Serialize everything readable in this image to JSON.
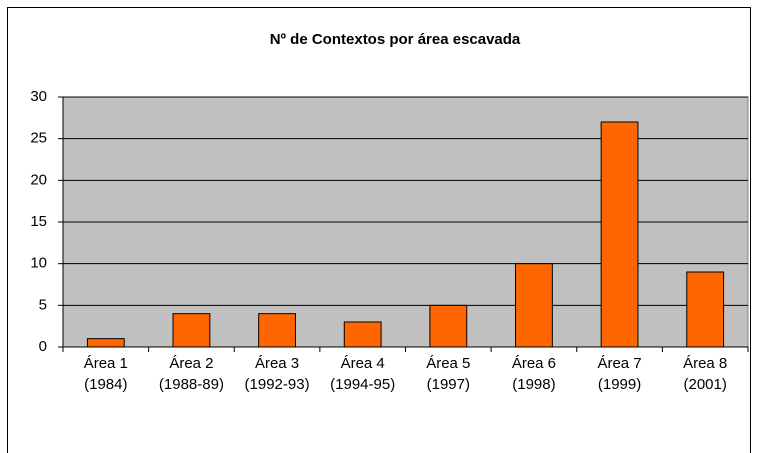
{
  "chart_data": {
    "type": "bar",
    "title": "Nº de Contextos por área escavada",
    "categories": [
      "Área 1 (1984)",
      "Área 2 (1988-89)",
      "Área 3 (1992-93)",
      "Área 4 (1994-95)",
      "Área 5 (1997)",
      "Área 6 (1998)",
      "Área 7 (1999)",
      "Área 8 (2001)"
    ],
    "values": [
      1,
      4,
      4,
      3,
      5,
      10,
      27,
      9
    ],
    "color": "#ff6600",
    "ylim": [
      0,
      30
    ],
    "yticks": [
      0,
      5,
      10,
      15,
      20,
      25,
      30
    ],
    "grid": true
  }
}
